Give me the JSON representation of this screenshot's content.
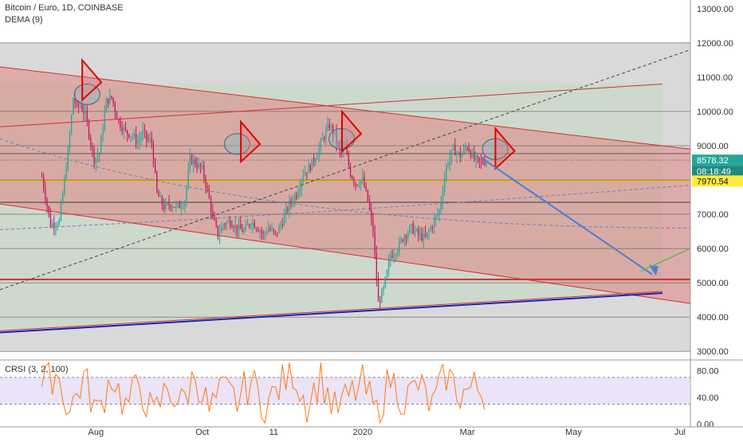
{
  "header": {
    "symbol_line": "Bitcoin / Euro, 1D, COINBASE",
    "indicator": "DEMA (9)",
    "oscillator": "CRSI (3, 2, 100)"
  },
  "price_axis": {
    "ticks": [
      "13000.00",
      "12000.00",
      "11000.00",
      "10000.00",
      "9000.00",
      "8000.00",
      "7000.00",
      "6000.00",
      "5000.00",
      "4000.00",
      "3000.00"
    ],
    "tick_values": [
      13000,
      12000,
      11000,
      10000,
      9000,
      8000,
      7000,
      6000,
      5000,
      4000,
      3000
    ],
    "range": [
      2750,
      13250
    ]
  },
  "osc_axis": {
    "ticks": [
      "80.00",
      "40.00",
      "0.00"
    ],
    "tick_values": [
      80,
      40,
      0
    ],
    "range": [
      -4,
      96
    ],
    "band": [
      30,
      70
    ]
  },
  "price_tags": {
    "last_price": "8578.32",
    "last_price_value": 8578.32,
    "countdown": "08:18:49",
    "level": "7970.54",
    "level_value": 7970.54
  },
  "time_axis": {
    "labels": [
      "Aug",
      "Oct",
      "11",
      "2020",
      "Mar",
      "May",
      "Jul"
    ],
    "label_days": [
      31,
      92,
      133,
      184,
      244,
      305,
      366
    ]
  },
  "colors": {
    "channel_line": "#d32f2f",
    "channel_fill": "#e57373",
    "support_line": "#1a23b3",
    "level_line": "#f5b800",
    "level_tag": "#ffeb3b",
    "price_tag": "#26a69a",
    "candle_up": "#26a69a",
    "candle_down": "#c2185b",
    "arrow_forecast": "#4a7fd4",
    "arrow_alt": "#5dbb4a",
    "osc_line": "#ff7a14",
    "osc_band": "#e3d7f5"
  },
  "chart_data": {
    "type": "line",
    "x_unit": "days since 2019-07-01",
    "series": [
      {
        "name": "BTC/EUR close (approx.)",
        "points": [
          [
            0,
            8100
          ],
          [
            5,
            6700
          ],
          [
            10,
            6800
          ],
          [
            15,
            8800
          ],
          [
            18,
            10400
          ],
          [
            20,
            10100
          ],
          [
            22,
            10200
          ],
          [
            25,
            9900
          ],
          [
            28,
            9100
          ],
          [
            30,
            8600
          ],
          [
            33,
            8800
          ],
          [
            37,
            10300
          ],
          [
            40,
            10400
          ],
          [
            44,
            9700
          ],
          [
            48,
            9400
          ],
          [
            52,
            9300
          ],
          [
            55,
            9100
          ],
          [
            58,
            9400
          ],
          [
            60,
            9200
          ],
          [
            63,
            9100
          ],
          [
            66,
            7600
          ],
          [
            70,
            7200
          ],
          [
            74,
            7300
          ],
          [
            78,
            7200
          ],
          [
            82,
            7400
          ],
          [
            85,
            8600
          ],
          [
            88,
            8500
          ],
          [
            92,
            8300
          ],
          [
            95,
            7700
          ],
          [
            98,
            6900
          ],
          [
            101,
            6400
          ],
          [
            104,
            6700
          ],
          [
            108,
            6800
          ],
          [
            112,
            6600
          ],
          [
            116,
            6500
          ],
          [
            120,
            6800
          ],
          [
            124,
            6600
          ],
          [
            127,
            6400
          ],
          [
            130,
            6600
          ],
          [
            134,
            6400
          ],
          [
            138,
            6800
          ],
          [
            142,
            7300
          ],
          [
            146,
            7600
          ],
          [
            150,
            8200
          ],
          [
            154,
            8400
          ],
          [
            158,
            8800
          ],
          [
            162,
            9300
          ],
          [
            165,
            9600
          ],
          [
            168,
            9300
          ],
          [
            171,
            8800
          ],
          [
            174,
            8900
          ],
          [
            177,
            8200
          ],
          [
            180,
            7900
          ],
          [
            184,
            8000
          ],
          [
            187,
            7400
          ],
          [
            190,
            6500
          ],
          [
            193,
            4400
          ],
          [
            196,
            4800
          ],
          [
            200,
            5800
          ],
          [
            204,
            6000
          ],
          [
            208,
            6400
          ],
          [
            212,
            6600
          ],
          [
            216,
            6400
          ],
          [
            220,
            6300
          ],
          [
            224,
            6700
          ],
          [
            228,
            7100
          ],
          [
            232,
            8400
          ],
          [
            236,
            8900
          ],
          [
            240,
            8700
          ],
          [
            244,
            9000
          ],
          [
            248,
            8600
          ],
          [
            252,
            8500
          ],
          [
            255,
            8578
          ]
        ]
      },
      {
        "name": "CRSI (3, 2, 100)",
        "points": [
          [
            0,
            55
          ],
          [
            8,
            80
          ],
          [
            16,
            20
          ],
          [
            24,
            70
          ],
          [
            32,
            15
          ],
          [
            40,
            75
          ],
          [
            48,
            25
          ],
          [
            56,
            60
          ],
          [
            64,
            10
          ],
          [
            72,
            55
          ],
          [
            80,
            30
          ],
          [
            88,
            75
          ],
          [
            96,
            20
          ],
          [
            104,
            50
          ],
          [
            112,
            35
          ],
          [
            120,
            65
          ],
          [
            128,
            25
          ],
          [
            136,
            55
          ],
          [
            144,
            80
          ],
          [
            152,
            30
          ],
          [
            160,
            70
          ],
          [
            168,
            20
          ],
          [
            176,
            40
          ],
          [
            184,
            60
          ],
          [
            192,
            15
          ],
          [
            200,
            70
          ],
          [
            208,
            35
          ],
          [
            216,
            60
          ],
          [
            224,
            25
          ],
          [
            232,
            75
          ],
          [
            240,
            45
          ],
          [
            248,
            55
          ],
          [
            255,
            45
          ]
        ]
      }
    ],
    "ylim": [
      2750,
      13250
    ],
    "y2lim": [
      0,
      100
    ]
  }
}
